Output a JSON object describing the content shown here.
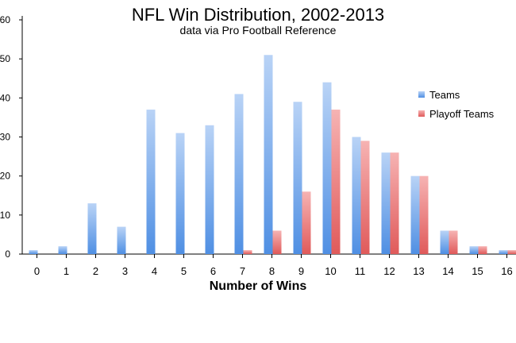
{
  "chart_data": {
    "type": "bar",
    "title": "NFL Win Distribution, 2002-2013",
    "subtitle": "data via Pro Football Reference",
    "xlabel": "Number of Wins",
    "ylabel": "",
    "ylim": [
      0,
      60
    ],
    "yticks": [
      0,
      10,
      20,
      30,
      40,
      50,
      60
    ],
    "categories": [
      "0",
      "1",
      "2",
      "3",
      "4",
      "5",
      "6",
      "7",
      "8",
      "9",
      "10",
      "11",
      "12",
      "13",
      "14",
      "15",
      "16"
    ],
    "series": [
      {
        "name": "Teams",
        "color_top": "#b9d3f6",
        "color_bottom": "#4f8fe3",
        "values": [
          1,
          2,
          13,
          7,
          37,
          31,
          33,
          41,
          51,
          39,
          44,
          30,
          26,
          20,
          6,
          2,
          1
        ]
      },
      {
        "name": "Playoff Teams",
        "color_top": "#f6b3b3",
        "color_bottom": "#e05a5a",
        "values": [
          0,
          0,
          0,
          0,
          0,
          0,
          0,
          1,
          6,
          16,
          37,
          29,
          26,
          20,
          6,
          2,
          1
        ]
      }
    ],
    "grid": false,
    "legend_position": "right"
  }
}
